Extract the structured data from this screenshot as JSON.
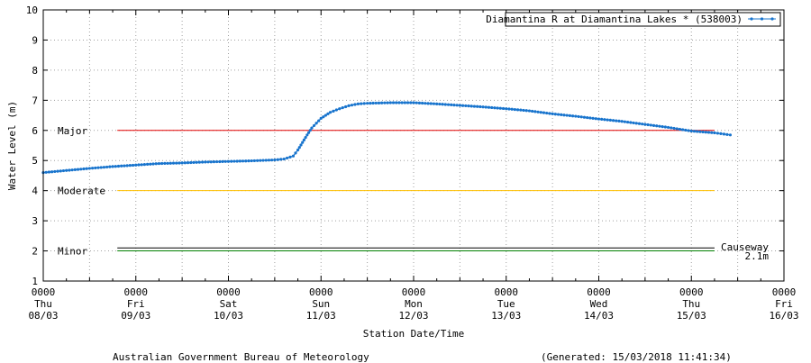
{
  "chart_data": {
    "type": "line",
    "title": "",
    "xlabel": "Station Date/Time",
    "ylabel": "Water Level (m)",
    "ylim": [
      1,
      10
    ],
    "y_ticks": [
      1,
      2,
      3,
      4,
      5,
      6,
      7,
      8,
      9,
      10
    ],
    "x_ticks": [
      {
        "time": "0000",
        "day": "Thu",
        "date": "08/03",
        "day_index": 0
      },
      {
        "time": "0000",
        "day": "Fri",
        "date": "09/03",
        "day_index": 1
      },
      {
        "time": "0000",
        "day": "Sat",
        "date": "10/03",
        "day_index": 2
      },
      {
        "time": "0000",
        "day": "Sun",
        "date": "11/03",
        "day_index": 3
      },
      {
        "time": "0000",
        "day": "Mon",
        "date": "12/03",
        "day_index": 4
      },
      {
        "time": "0000",
        "day": "Tue",
        "date": "13/03",
        "day_index": 5
      },
      {
        "time": "0000",
        "day": "Wed",
        "date": "14/03",
        "day_index": 6
      },
      {
        "time": "0000",
        "day": "Thu",
        "date": "15/03",
        "day_index": 7
      },
      {
        "time": "0000",
        "day": "Fri",
        "date": "16/03",
        "day_index": 8
      }
    ],
    "grid": true,
    "legend_position": "top-right",
    "series": [
      {
        "name": "Diamantina R at Diamantina Lakes * (538003)",
        "color": "#1874cd",
        "x_day": [
          0.0,
          0.25,
          0.5,
          0.75,
          1.0,
          1.25,
          1.5,
          1.75,
          2.0,
          2.25,
          2.5,
          2.6,
          2.7,
          2.75,
          2.8,
          2.85,
          2.9,
          3.0,
          3.1,
          3.2,
          3.3,
          3.4,
          3.5,
          3.75,
          4.0,
          4.25,
          4.5,
          4.75,
          5.0,
          5.25,
          5.5,
          5.75,
          6.0,
          6.25,
          6.5,
          6.75,
          7.0,
          7.25,
          7.42
        ],
        "y": [
          4.6,
          4.67,
          4.74,
          4.8,
          4.85,
          4.9,
          4.92,
          4.95,
          4.97,
          4.99,
          5.02,
          5.05,
          5.15,
          5.35,
          5.6,
          5.85,
          6.08,
          6.4,
          6.6,
          6.72,
          6.82,
          6.88,
          6.9,
          6.92,
          6.92,
          6.88,
          6.83,
          6.78,
          6.72,
          6.65,
          6.55,
          6.47,
          6.38,
          6.3,
          6.2,
          6.1,
          5.98,
          5.92,
          5.85
        ]
      }
    ],
    "thresholds": [
      {
        "label": "Major",
        "value": 6,
        "color": "#e00000"
      },
      {
        "label": "Moderate",
        "value": 4,
        "color": "#ffc000"
      },
      {
        "label": "Minor",
        "value": 2,
        "color": "#008000"
      },
      {
        "label": "Causeway",
        "value_label": "2.1m",
        "value": 2.1,
        "color": "#000000"
      }
    ]
  },
  "footer": {
    "left": "Australian Government Bureau of Meteorology",
    "right": "(Generated: 15/03/2018 11:41:34)"
  }
}
